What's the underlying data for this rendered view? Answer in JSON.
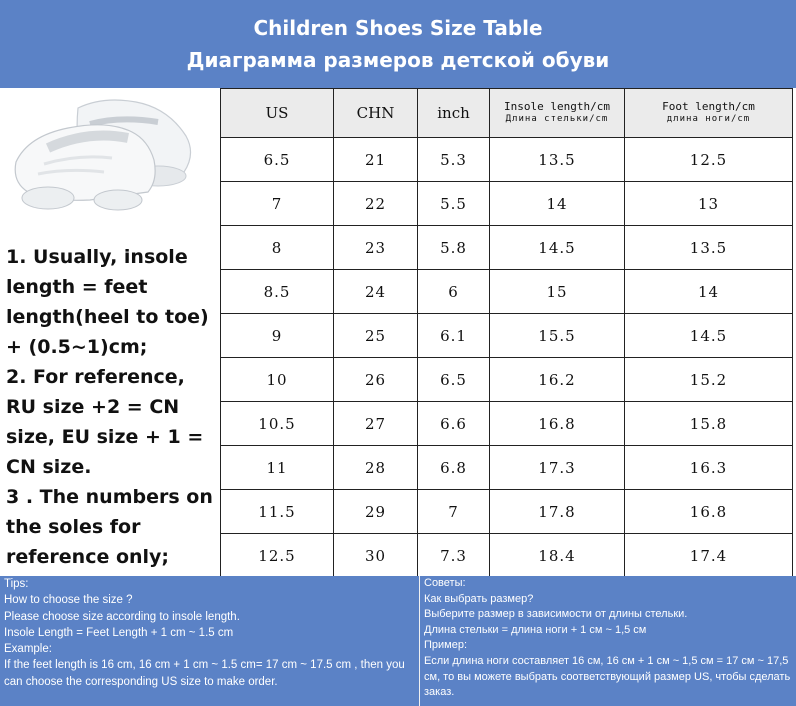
{
  "header": {
    "title_en": "Children Shoes Size Table",
    "title_ru": "Диаграмма размеров детской обуви"
  },
  "image": {
    "icon": "white-sneakers-pair"
  },
  "notes": "1. Usually, insole length = feet length(heel to toe) + (0.5~1)cm;\n2. For reference, RU size +2 = CN size, EU size + 1 = CN size.\n3 . The numbers on the soles for reference only;",
  "table": {
    "headers": {
      "us": "US",
      "chn": "CHN",
      "inch": "inch",
      "insole": "Insole length/cm",
      "insole_ru": "Длина стельки/cm",
      "foot": "Foot length/cm",
      "foot_ru": "длина ноги/cm"
    },
    "rows": [
      [
        "6.5",
        "21",
        "5.3",
        "13.5",
        "12.5"
      ],
      [
        "7",
        "22",
        "5.5",
        "14",
        "13"
      ],
      [
        "8",
        "23",
        "5.8",
        "14.5",
        "13.5"
      ],
      [
        "8.5",
        "24",
        "6",
        "15",
        "14"
      ],
      [
        "9",
        "25",
        "6.1",
        "15.5",
        "14.5"
      ],
      [
        "10",
        "26",
        "6.5",
        "16.2",
        "15.2"
      ],
      [
        "10.5",
        "27",
        "6.6",
        "16.8",
        "15.8"
      ],
      [
        "11",
        "28",
        "6.8",
        "17.3",
        "16.3"
      ],
      [
        "11.5",
        "29",
        "7",
        "17.8",
        "16.8"
      ],
      [
        "12.5",
        "30",
        "7.3",
        "18.4",
        "17.4"
      ]
    ]
  },
  "tips_en": [
    "Tips:",
    "How to choose the size ?",
    "Please choose size according to insole length.",
    "Insole Length = Feet Length + 1 cm ~ 1.5 cm",
    "Example:",
    "If the feet length is 16 cm, 16 cm + 1 cm ~ 1.5 cm= 17 cm ~ 17.5 cm , then you can choose the corresponding US size to make order."
  ],
  "tips_ru": [
    "Советы:",
    "Как выбрать размер?",
    "Выберите размер в зависимости от длины стельки.",
    "Длина стельки = длина ноги + 1 см ~ 1,5 см",
    "Пример:",
    "Если длина ноги составляет 16 см, 16 см + 1 см ~ 1,5 см = 17 см ~ 17,5 см, то вы можете выбрать соответствующий размер US, чтобы сделать заказ."
  ],
  "colors": {
    "header_bg": "#5b82c6",
    "table_header_bg": "#ebebeb"
  }
}
